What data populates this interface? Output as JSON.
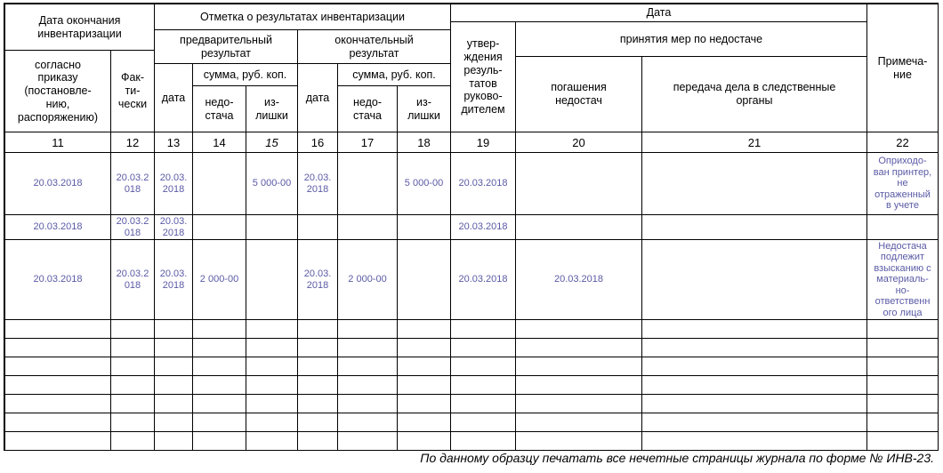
{
  "colors": {
    "entry_text": "#5a5aa6",
    "grid_line": "#000000",
    "background": "#ffffff"
  },
  "table": {
    "headers": {
      "date_completion_group": "Дата окончания инвентаризации",
      "per_order": "согласно\nприказу\n(постановле-\nнию,\nраспоряжению)",
      "actual": "Фак-\nти-\nчески",
      "results_mark_group": "Отметка о результатах инвентаризации",
      "preliminary_result": "предварительный\nрезультат",
      "final_result": "окончательный\nрезультат",
      "date": "дата",
      "sum_rub_kop": "сумма, руб. коп.",
      "shortage": "недо-\nстача",
      "surplus": "из-\nлишки",
      "date_group": "Дата",
      "approval_by_manager": "утвер-\nждения\nрезуль-\nтатов\nруково-\nдителем",
      "measures_taken_group": "принятия мер по недостаче",
      "shortage_repayment": "погашения\nнедостач",
      "transfer_to_investigative": "передача дела в следственные\nорганы",
      "note": "Примеча-\nние"
    },
    "column_numbers": [
      "11",
      "12",
      "13",
      "14",
      "15",
      "16",
      "17",
      "18",
      "19",
      "20",
      "21",
      "22"
    ],
    "rows": [
      [
        "20.03.2018",
        "20.03.2\n018",
        "20.03.\n2018",
        "",
        "5 000-00",
        "20.03.\n2018",
        "",
        "5 000-00",
        "20.03.2018",
        "",
        "",
        "Оприходо-\nван принтер,\nне\nотраженный\nв учете"
      ],
      [
        "20.03.2018",
        "20.03.2\n018",
        "20.03.\n2018",
        "",
        "",
        "",
        "",
        "",
        "20.03.2018",
        "",
        "",
        ""
      ],
      [
        "20.03.2018",
        "20.03.2\n018",
        "20.03.\n2018",
        "2 000-00",
        "",
        "20.03.\n2018",
        "2 000-00",
        "",
        "20.03.2018",
        "20.03.2018",
        "",
        "Недостача\nподлежит\nвзысканию с\nматериаль-\nно-\nответственн\nого лица"
      ],
      [
        "",
        "",
        "",
        "",
        "",
        "",
        "",
        "",
        "",
        "",
        "",
        ""
      ],
      [
        "",
        "",
        "",
        "",
        "",
        "",
        "",
        "",
        "",
        "",
        "",
        ""
      ],
      [
        "",
        "",
        "",
        "",
        "",
        "",
        "",
        "",
        "",
        "",
        "",
        ""
      ],
      [
        "",
        "",
        "",
        "",
        "",
        "",
        "",
        "",
        "",
        "",
        "",
        ""
      ],
      [
        "",
        "",
        "",
        "",
        "",
        "",
        "",
        "",
        "",
        "",
        "",
        ""
      ],
      [
        "",
        "",
        "",
        "",
        "",
        "",
        "",
        "",
        "",
        "",
        "",
        ""
      ],
      [
        "",
        "",
        "",
        "",
        "",
        "",
        "",
        "",
        "",
        "",
        "",
        ""
      ]
    ]
  },
  "footer": {
    "note": "По данному образцу печатать все нечетные страницы журнала по форме № ИНВ-23."
  }
}
